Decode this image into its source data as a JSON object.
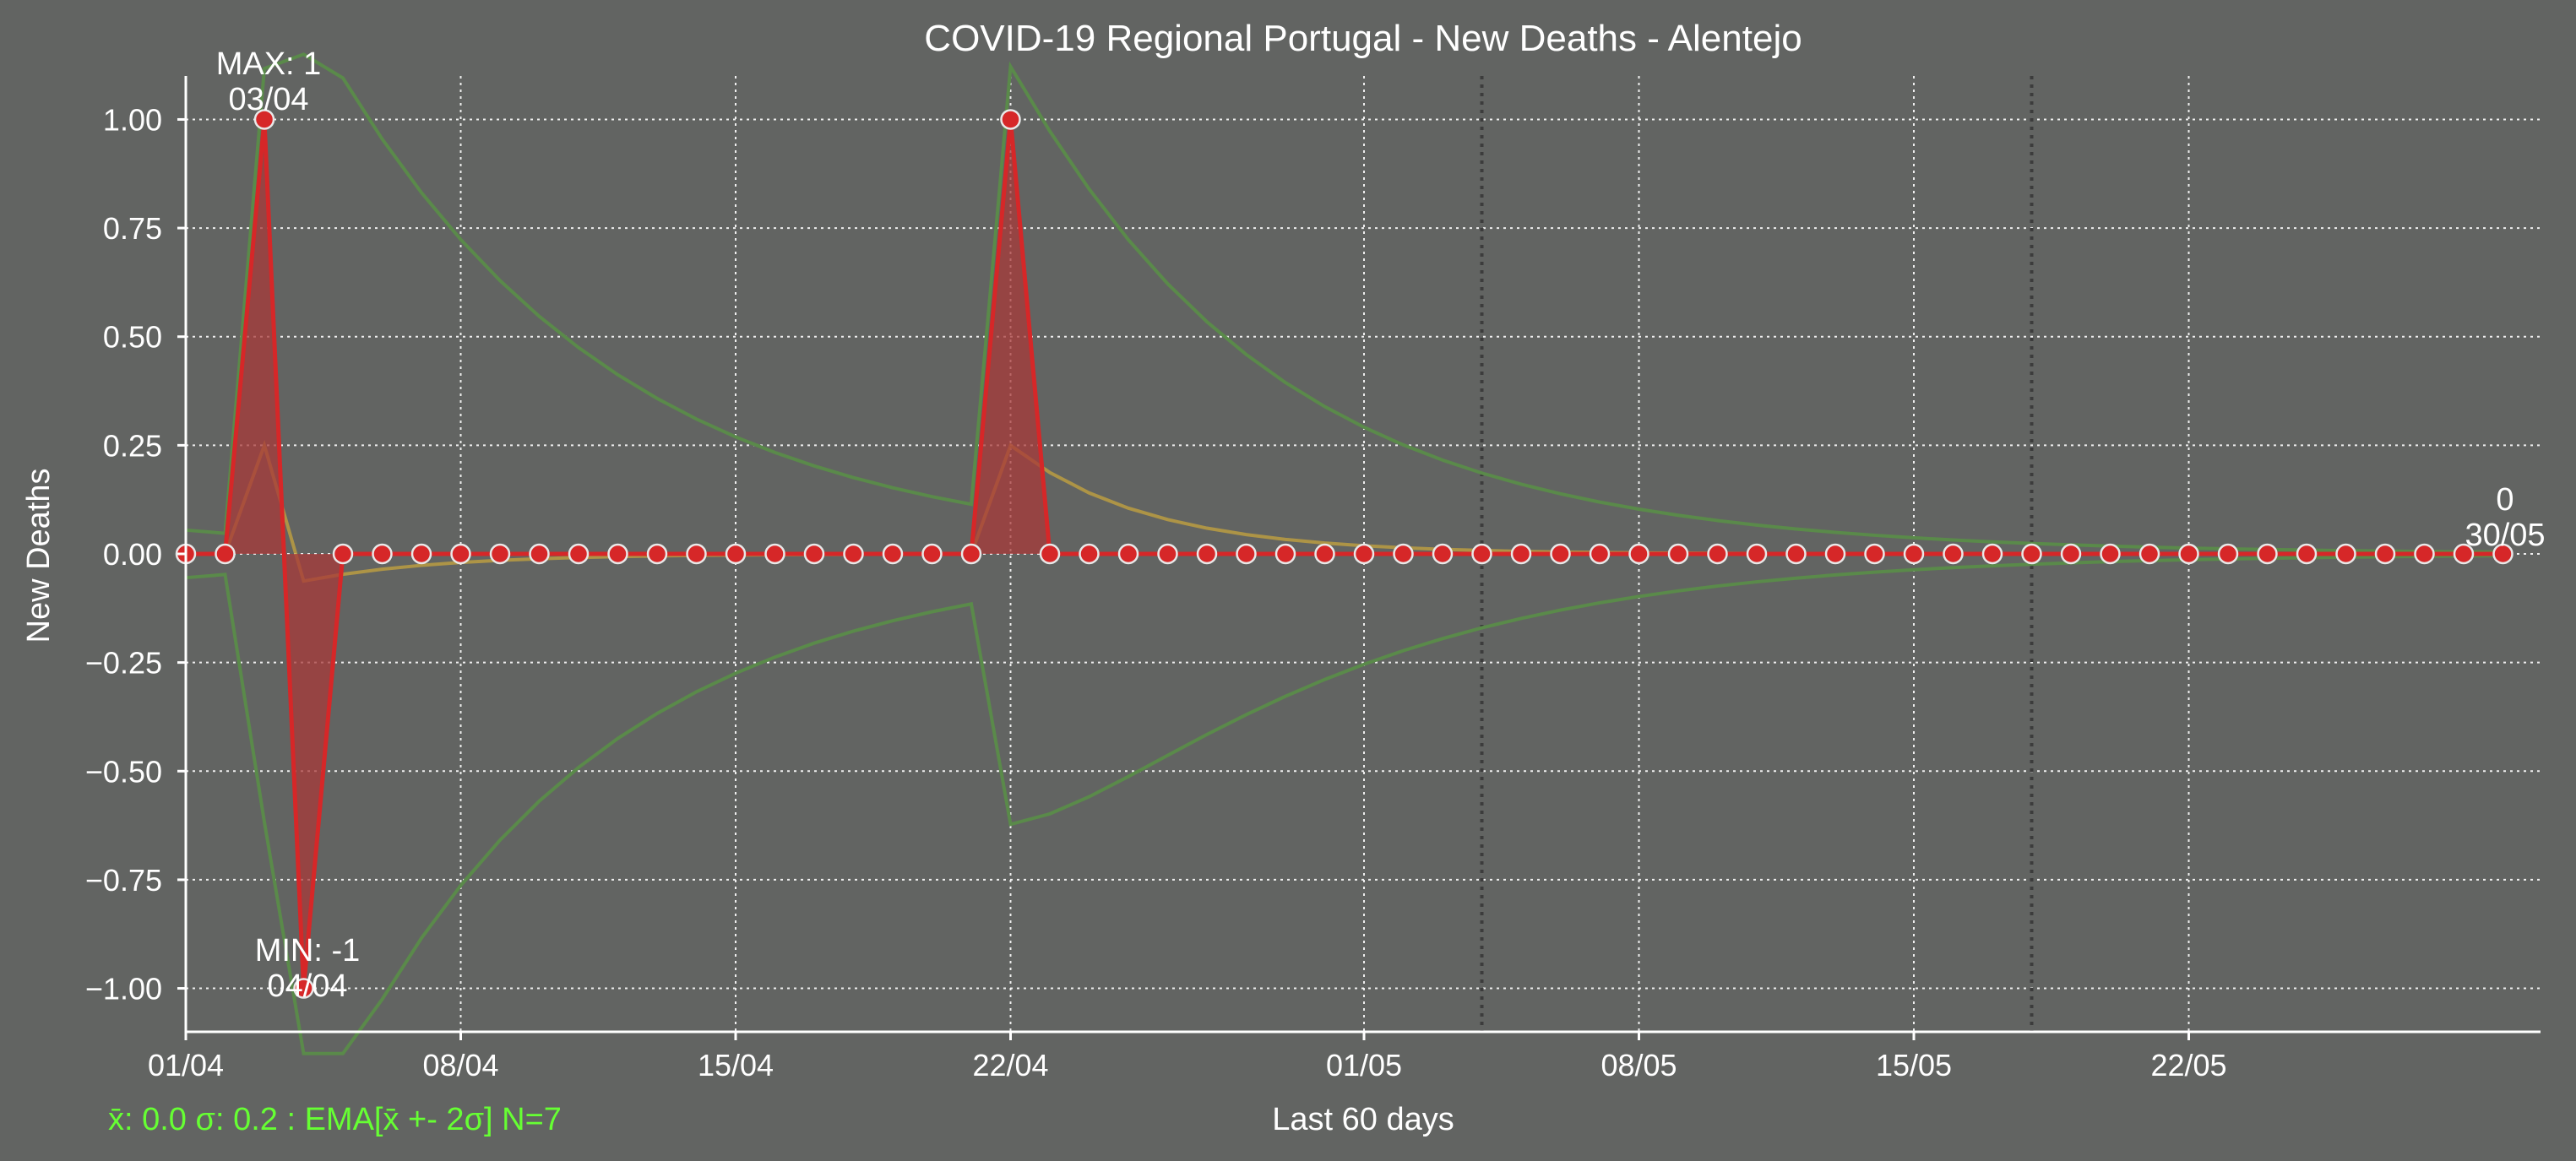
{
  "chart_data": {
    "type": "line",
    "title": "COVID-19 Regional Portugal - New Deaths - Alentejo",
    "xlabel": "Last 60 days",
    "ylabel": "New Deaths",
    "ylim": [
      -1.1,
      1.1
    ],
    "grid": true,
    "x_start": "01/04",
    "x_end": "30/05",
    "x_ticks": [
      "01/04",
      "08/04",
      "15/04",
      "22/04",
      "01/05",
      "08/05",
      "15/05",
      "22/05"
    ],
    "y_ticks": [
      "1.00",
      "0.75",
      "0.50",
      "0.25",
      "0.00",
      "−0.25",
      "−0.50",
      "−0.75",
      "−1.00"
    ],
    "series": [
      {
        "values": [
          0,
          0,
          1,
          -1,
          0,
          0,
          0,
          0,
          0,
          0,
          0,
          0,
          0,
          0,
          0,
          0,
          0,
          0,
          0,
          0,
          0,
          1,
          0,
          0,
          0,
          0,
          0,
          0,
          0,
          0,
          0,
          0,
          0,
          0,
          0,
          0,
          0,
          0,
          0,
          0,
          0,
          0,
          0,
          0,
          0,
          0,
          0,
          0,
          0,
          0,
          0,
          0,
          0,
          0,
          0,
          0,
          0,
          0,
          0,
          0
        ],
        "color": "#d62728"
      }
    ],
    "band_color": "#5a8a4a",
    "ema_color": "#c0a040",
    "annotations": {
      "max": {
        "label": "MAX: 1",
        "date": "03/04"
      },
      "min": {
        "label": "MIN: -1",
        "date": "04/04"
      },
      "last": {
        "label": "0",
        "date": "30/05"
      }
    },
    "stats_text": "x̄: 0.0 σ: 0.2 : EMA[x̄ +- 2σ] N=7",
    "stats_color": "#66ff33"
  }
}
